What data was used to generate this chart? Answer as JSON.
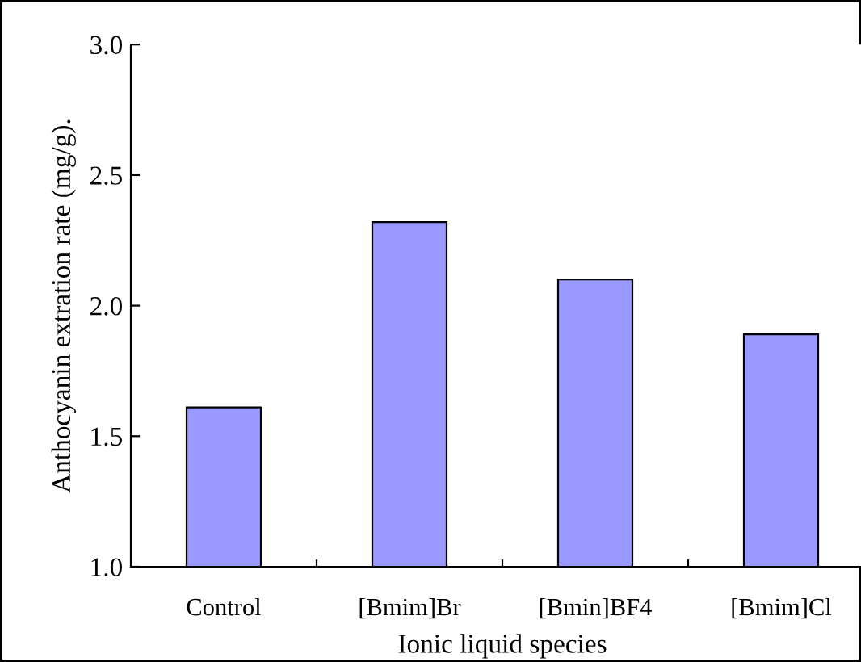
{
  "chart_data": {
    "type": "bar",
    "xlabel": "Ionic liquid species",
    "ylabel": "Anthocyanin extration rate (mg/g).",
    "categories": [
      "Control",
      "[Bmim]Br",
      "[Bmin]BF4",
      "[Bmim]Cl"
    ],
    "values": [
      1.61,
      2.32,
      2.1,
      1.89
    ],
    "color": "#9999ff",
    "ylim": [
      1.0,
      3.0
    ],
    "yticks": [
      {
        "value": 1.0,
        "label": "1.0"
      },
      {
        "value": 1.5,
        "label": "1.5"
      },
      {
        "value": 2.0,
        "label": "2.0"
      },
      {
        "value": 2.5,
        "label": "2.5"
      },
      {
        "value": 3.0,
        "label": "3.0"
      }
    ],
    "grid": false
  }
}
